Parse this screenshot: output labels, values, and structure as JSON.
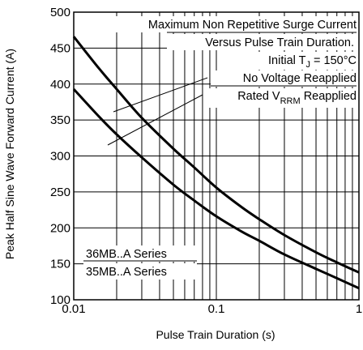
{
  "chart_data": {
    "type": "line",
    "title_lines": {
      "line1": "Maximum Non Repetitive Surge Current",
      "line2": "Versus Pulse Train Duration.",
      "line3_prefix": "Initial T",
      "line3_sub": "J",
      "line3_suffix": " = 150°C",
      "line4": "No Voltage Reapplied",
      "line5_prefix": "Rated V",
      "line5_sub": "RRM",
      "line5_suffix": " Reapplied"
    },
    "xlabel": "Pulse Train Duration (s)",
    "ylabel": "Peak Half Sine Wave Forward Current (A)",
    "x_scale": "log",
    "xlim": [
      0.01,
      1
    ],
    "ylim": [
      100,
      500
    ],
    "x_ticks": [
      {
        "value": 0.01,
        "label": "0.01"
      },
      {
        "value": 0.1,
        "label": "0.1"
      },
      {
        "value": 1,
        "label": "1"
      }
    ],
    "y_ticks": [
      {
        "value": 100,
        "label": "100"
      },
      {
        "value": 150,
        "label": "150"
      },
      {
        "value": 200,
        "label": "200"
      },
      {
        "value": 250,
        "label": "250"
      },
      {
        "value": 300,
        "label": "300"
      },
      {
        "value": 350,
        "label": "350"
      },
      {
        "value": 400,
        "label": "400"
      },
      {
        "value": 450,
        "label": "450"
      },
      {
        "value": 500,
        "label": "500"
      }
    ],
    "grid": true,
    "series": [
      {
        "name": "No Voltage Reapplied",
        "x": [
          0.01,
          0.015,
          0.02,
          0.03,
          0.05,
          0.07,
          0.1,
          0.15,
          0.2,
          0.3,
          0.5,
          0.7,
          1.0
        ],
        "values": [
          466,
          422,
          393,
          353,
          310,
          284,
          256,
          229,
          212,
          190,
          166,
          152,
          138
        ]
      },
      {
        "name": "Rated VRRM Reapplied",
        "x": [
          0.01,
          0.015,
          0.02,
          0.03,
          0.05,
          0.07,
          0.1,
          0.15,
          0.2,
          0.3,
          0.5,
          0.7,
          1.0
        ],
        "values": [
          393,
          355,
          330,
          298,
          260,
          238,
          216,
          195,
          182,
          163,
          143,
          130,
          116
        ]
      }
    ],
    "series_labels": [
      "36MB..A Series",
      "35MB..A Series"
    ]
  }
}
